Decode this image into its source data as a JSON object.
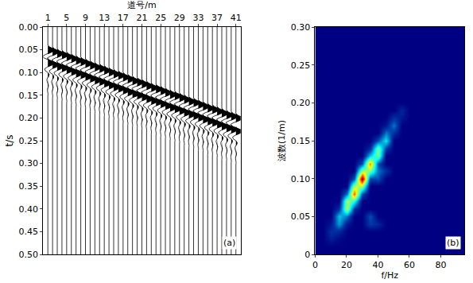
{
  "chart_data": [
    {
      "type": "wiggle",
      "x_label": "道号/m",
      "y_label": "t/s",
      "annotations": [
        "(a)"
      ],
      "x": [
        1,
        2,
        3,
        4,
        5,
        6,
        7,
        8,
        9,
        10,
        11,
        12,
        13,
        14,
        15,
        16,
        17,
        18,
        19,
        20,
        21,
        22,
        23,
        24,
        25,
        26,
        27,
        28,
        29,
        30,
        31,
        32,
        33,
        34,
        35,
        36,
        37,
        38,
        39,
        40,
        41
      ],
      "onsets": [
        0.04,
        0.044,
        0.048,
        0.051,
        0.055,
        0.059,
        0.063,
        0.066,
        0.07,
        0.074,
        0.078,
        0.081,
        0.085,
        0.089,
        0.093,
        0.096,
        0.1,
        0.104,
        0.108,
        0.111,
        0.115,
        0.119,
        0.123,
        0.126,
        0.13,
        0.134,
        0.138,
        0.141,
        0.145,
        0.149,
        0.153,
        0.156,
        0.16,
        0.164,
        0.168,
        0.171,
        0.175,
        0.179,
        0.183,
        0.186,
        0.19
      ],
      "wavelet_dt": 0.004,
      "wavelet": [
        0,
        0.3,
        0.9,
        1.0,
        0.5,
        -0.3,
        -0.8,
        -0.6,
        0.2,
        0.8,
        1.0,
        0.6,
        -0.1,
        -0.5,
        -0.4,
        0,
        0.2,
        0.15,
        -0.05,
        -0.15,
        -0.1,
        0.05,
        0.1,
        0.05,
        -0.05,
        -0.05,
        0,
        0.03,
        0,
        0
      ],
      "color": "#000000",
      "xlim": [
        0,
        42
      ],
      "xticks": [
        1,
        5,
        9,
        13,
        17,
        21,
        25,
        29,
        33,
        37,
        41
      ],
      "ylim": [
        0.5,
        0
      ],
      "yticks": [
        {
          "value": 0,
          "label": "0.00"
        },
        0.05,
        {
          "value": 0.1,
          "label": "0.10"
        },
        0.15,
        {
          "value": 0.2,
          "label": "0.20"
        },
        0.25,
        {
          "value": 0.3,
          "label": "0.30"
        },
        0.35,
        {
          "value": 0.4,
          "label": "0.40"
        },
        0.45,
        {
          "value": 0.5,
          "label": "0.50"
        }
      ],
      "grid": false
    },
    {
      "type": "heatmap",
      "x_label": "f/Hz",
      "y_label": "波数(1/m)",
      "annotations": [
        "(b)"
      ],
      "x": [
        0,
        5,
        10,
        15,
        20,
        25,
        30,
        35,
        40,
        45,
        50,
        55,
        60,
        65,
        70,
        75,
        80,
        85,
        90,
        95
      ],
      "y": [
        0,
        0.01,
        0.02,
        0.03,
        0.04,
        0.05,
        0.06,
        0.07,
        0.08,
        0.09,
        0.1,
        0.11,
        0.12,
        0.13,
        0.14,
        0.15,
        0.16,
        0.17,
        0.18,
        0.19,
        0.2,
        0.21,
        0.22,
        0.23,
        0.24,
        0.25,
        0.26,
        0.27,
        0.28,
        0.29,
        0.3
      ],
      "z": [
        [
          0,
          0,
          0,
          0,
          0,
          0,
          0,
          0,
          0,
          0,
          0,
          0,
          0,
          0,
          0,
          0,
          0,
          0,
          0,
          0
        ],
        [
          0,
          0,
          0,
          0,
          0,
          0,
          0,
          0,
          0,
          0,
          0,
          0,
          0,
          0,
          0,
          0,
          0,
          0,
          0,
          0
        ],
        [
          0,
          0,
          0.06,
          0.02,
          0,
          0,
          0,
          0,
          0,
          0,
          0,
          0,
          0,
          0,
          0,
          0,
          0,
          0,
          0,
          0
        ],
        [
          0,
          0,
          0.1,
          0.08,
          0,
          0,
          0,
          0,
          0,
          0,
          0,
          0,
          0,
          0,
          0,
          0,
          0,
          0,
          0,
          0
        ],
        [
          0,
          0,
          0.05,
          0.25,
          0.05,
          0,
          0,
          0.12,
          0.08,
          0,
          0,
          0,
          0,
          0,
          0,
          0,
          0,
          0,
          0,
          0
        ],
        [
          0,
          0,
          0,
          0.3,
          0.2,
          0,
          0,
          0.15,
          0,
          0,
          0,
          0,
          0,
          0,
          0,
          0,
          0,
          0,
          0,
          0
        ],
        [
          0,
          0,
          0,
          0.1,
          0.55,
          0.1,
          0,
          0,
          0,
          0,
          0,
          0,
          0,
          0,
          0,
          0,
          0,
          0,
          0,
          0
        ],
        [
          0,
          0,
          0,
          0,
          0.55,
          0.4,
          0,
          0,
          0,
          0,
          0,
          0,
          0,
          0,
          0,
          0,
          0,
          0,
          0,
          0
        ],
        [
          0,
          0,
          0,
          0,
          0.2,
          0.8,
          0.15,
          0,
          0,
          0,
          0,
          0,
          0,
          0,
          0,
          0,
          0,
          0,
          0,
          0
        ],
        [
          0,
          0,
          0,
          0,
          0,
          0.55,
          0.55,
          0,
          0,
          0,
          0,
          0,
          0,
          0,
          0,
          0,
          0,
          0,
          0,
          0
        ],
        [
          0,
          0,
          0,
          0,
          0,
          0.15,
          1.0,
          0.12,
          0.15,
          0,
          0,
          0,
          0,
          0,
          0,
          0,
          0,
          0,
          0,
          0
        ],
        [
          0,
          0,
          0,
          0,
          0,
          0,
          0.55,
          0.5,
          0.2,
          0.1,
          0,
          0,
          0,
          0,
          0,
          0,
          0,
          0,
          0,
          0
        ],
        [
          0,
          0,
          0,
          0,
          0,
          0,
          0.15,
          0.75,
          0.15,
          0,
          0,
          0,
          0,
          0,
          0,
          0,
          0,
          0,
          0,
          0
        ],
        [
          0,
          0,
          0,
          0,
          0,
          0,
          0,
          0.3,
          0.5,
          0,
          0,
          0,
          0,
          0,
          0,
          0,
          0,
          0,
          0,
          0
        ],
        [
          0,
          0,
          0,
          0,
          0,
          0,
          0,
          0.08,
          0.5,
          0.12,
          0,
          0,
          0,
          0,
          0,
          0,
          0,
          0,
          0,
          0
        ],
        [
          0,
          0,
          0,
          0,
          0,
          0,
          0,
          0,
          0.15,
          0.35,
          0,
          0,
          0,
          0,
          0,
          0,
          0,
          0,
          0,
          0
        ],
        [
          0,
          0,
          0,
          0,
          0,
          0,
          0,
          0,
          0,
          0.2,
          0.1,
          0,
          0,
          0,
          0,
          0,
          0,
          0,
          0,
          0
        ],
        [
          0,
          0,
          0,
          0,
          0,
          0,
          0,
          0,
          0,
          0.05,
          0.2,
          0,
          0,
          0,
          0,
          0,
          0,
          0,
          0,
          0
        ],
        [
          0,
          0,
          0,
          0,
          0,
          0,
          0,
          0,
          0,
          0,
          0.1,
          0.05,
          0,
          0,
          0,
          0,
          0,
          0,
          0,
          0
        ],
        [
          0,
          0,
          0,
          0,
          0,
          0,
          0,
          0,
          0,
          0,
          0,
          0.08,
          0,
          0,
          0,
          0,
          0,
          0,
          0,
          0
        ],
        [
          0,
          0,
          0,
          0,
          0,
          0,
          0,
          0,
          0,
          0,
          0,
          0,
          0,
          0,
          0,
          0,
          0,
          0,
          0,
          0
        ],
        [
          0,
          0,
          0,
          0,
          0,
          0,
          0,
          0,
          0,
          0,
          0,
          0,
          0,
          0,
          0,
          0,
          0,
          0,
          0,
          0
        ],
        [
          0,
          0,
          0,
          0,
          0,
          0,
          0,
          0,
          0,
          0,
          0,
          0,
          0,
          0,
          0,
          0,
          0,
          0,
          0,
          0
        ],
        [
          0,
          0,
          0,
          0,
          0,
          0,
          0,
          0,
          0,
          0,
          0,
          0,
          0,
          0,
          0,
          0,
          0,
          0,
          0,
          0
        ],
        [
          0,
          0,
          0,
          0,
          0,
          0,
          0,
          0,
          0,
          0,
          0,
          0,
          0,
          0,
          0,
          0,
          0,
          0,
          0,
          0
        ],
        [
          0,
          0,
          0,
          0,
          0,
          0,
          0,
          0,
          0,
          0,
          0,
          0,
          0,
          0,
          0,
          0,
          0,
          0,
          0,
          0
        ],
        [
          0,
          0,
          0,
          0,
          0,
          0,
          0,
          0,
          0,
          0,
          0,
          0,
          0,
          0,
          0,
          0,
          0,
          0,
          0,
          0
        ],
        [
          0,
          0,
          0,
          0,
          0,
          0,
          0,
          0,
          0,
          0,
          0,
          0,
          0,
          0,
          0,
          0,
          0,
          0,
          0,
          0
        ],
        [
          0,
          0,
          0,
          0,
          0,
          0,
          0,
          0,
          0,
          0,
          0,
          0,
          0,
          0,
          0,
          0,
          0,
          0,
          0,
          0
        ],
        [
          0,
          0,
          0,
          0,
          0,
          0,
          0,
          0,
          0,
          0,
          0,
          0,
          0,
          0,
          0,
          0,
          0,
          0,
          0,
          0
        ],
        [
          0,
          0,
          0,
          0,
          0,
          0,
          0,
          0,
          0,
          0,
          0,
          0,
          0,
          0,
          0,
          0,
          0,
          0,
          0,
          0
        ]
      ],
      "xlim": [
        0,
        95
      ],
      "xticks": [
        0,
        20,
        40,
        60,
        80
      ],
      "ylim": [
        0,
        0.3
      ],
      "yticks": [
        0,
        0.05,
        {
          "value": 0.1,
          "label": "0.10"
        },
        0.15,
        {
          "value": 0.2,
          "label": "0.20"
        },
        0.25,
        {
          "value": 0.3,
          "label": "0.30"
        }
      ],
      "grid": false
    }
  ]
}
